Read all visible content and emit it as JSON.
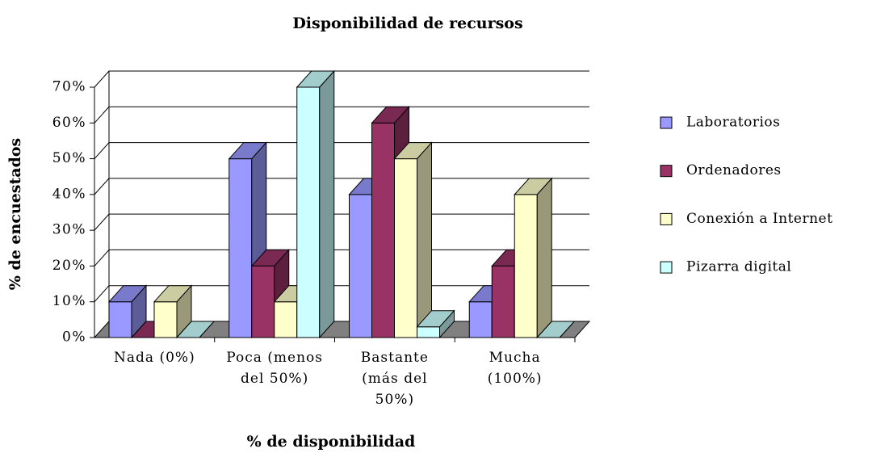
{
  "chart_data": {
    "type": "bar3d",
    "title": "Disponibilidad de recursos",
    "x_label": "% de disponibilidad",
    "y_label": "% de encuestados",
    "categories": [
      "Nada (0%)",
      "Poca (menos del 50%)",
      "Bastante (más del 50%)",
      "Mucha (100%)"
    ],
    "series": [
      {
        "name": "Laboratorios",
        "color": "#9999ff",
        "values": [
          10,
          50,
          40,
          10
        ]
      },
      {
        "name": "Ordenadores",
        "color": "#993366",
        "values": [
          0,
          20,
          60,
          20
        ]
      },
      {
        "name": "Conexión a Internet",
        "color": "#ffffcc",
        "values": [
          10,
          10,
          50,
          40
        ]
      },
      {
        "name": "Pizarra digital",
        "color": "#ccffff",
        "values": [
          0,
          70,
          3,
          0
        ]
      }
    ],
    "ylim": [
      0,
      70
    ],
    "yticks": [
      {
        "value": 0,
        "label": "0%"
      },
      {
        "value": 10,
        "label": "10%"
      },
      {
        "value": 20,
        "label": "20%"
      },
      {
        "value": 30,
        "label": "30%"
      },
      {
        "value": 40,
        "label": "40%"
      },
      {
        "value": 50,
        "label": "50%"
      },
      {
        "value": 60,
        "label": "60%"
      },
      {
        "value": 70,
        "label": "70%"
      }
    ],
    "grid": true,
    "legend": "right"
  }
}
